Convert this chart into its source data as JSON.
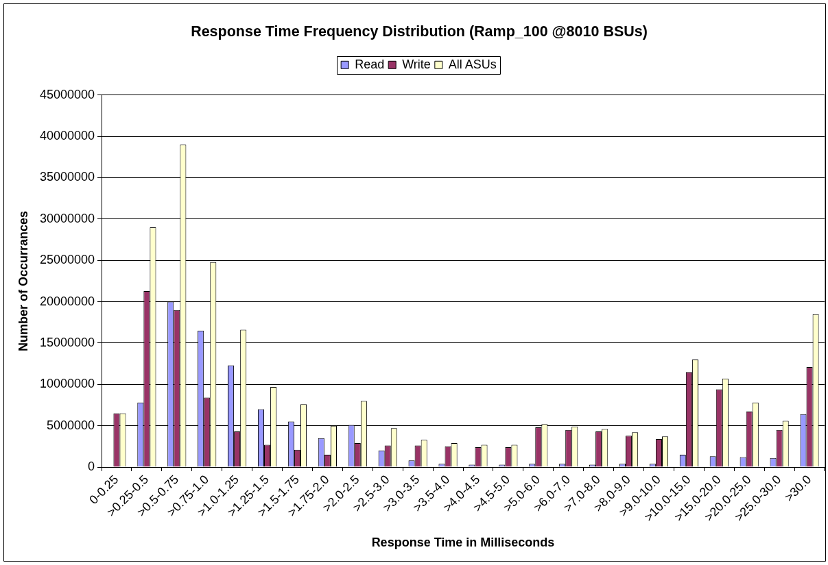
{
  "chart_data": {
    "type": "bar",
    "title": "Response Time Frequency Distribution (Ramp_100 @8010 BSUs)",
    "xlabel": "Response Time in Milliseconds",
    "ylabel": "Number of Occurrances",
    "categories": [
      "0-0.25",
      ">0.25-0.5",
      ">0.5-0.75",
      ">0.75-1.0",
      ">1.0-1.25",
      ">1.25-1.5",
      ">1.5-1.75",
      ">1.75-2.0",
      ">2.0-2.5",
      ">2.5-3.0",
      ">3.0-3.5",
      ">3.5-4.0",
      ">4.0-4.5",
      ">4.5-5.0",
      ">5.0-6.0",
      ">6.0-7.0",
      ">7.0-8.0",
      ">8.0-9.0",
      ">9.0-10.0",
      ">10.0-15.0",
      ">15.0-20.0",
      ">20.0-25.0",
      ">25.0-30.0",
      ">30.0"
    ],
    "series": [
      {
        "name": "Read",
        "color": "#9999ff",
        "values": [
          0,
          7800000,
          20000000,
          16500000,
          12300000,
          7000000,
          5500000,
          3500000,
          5100000,
          2000000,
          800000,
          400000,
          300000,
          300000,
          400000,
          400000,
          300000,
          400000,
          400000,
          1500000,
          1300000,
          1200000,
          1100000,
          6400000
        ]
      },
      {
        "name": "Write",
        "color": "#993366",
        "values": [
          6500000,
          21300000,
          19000000,
          8400000,
          4300000,
          2700000,
          2100000,
          1500000,
          2900000,
          2600000,
          2600000,
          2500000,
          2400000,
          2400000,
          4800000,
          4500000,
          4300000,
          3800000,
          3400000,
          11500000,
          9400000,
          6700000,
          4500000,
          12100000
        ]
      },
      {
        "name": "All ASUs",
        "color": "#ffffcc",
        "values": [
          6500000,
          29000000,
          39000000,
          24800000,
          16600000,
          9700000,
          7600000,
          5000000,
          8000000,
          4700000,
          3300000,
          2900000,
          2700000,
          2700000,
          5200000,
          4900000,
          4600000,
          4200000,
          3700000,
          13000000,
          10700000,
          7800000,
          5600000,
          18500000
        ]
      }
    ],
    "ylim": [
      0,
      45000000
    ],
    "yticks": [
      0,
      5000000,
      10000000,
      15000000,
      20000000,
      25000000,
      30000000,
      35000000,
      40000000,
      45000000
    ],
    "grid": "y",
    "legend": "top"
  }
}
